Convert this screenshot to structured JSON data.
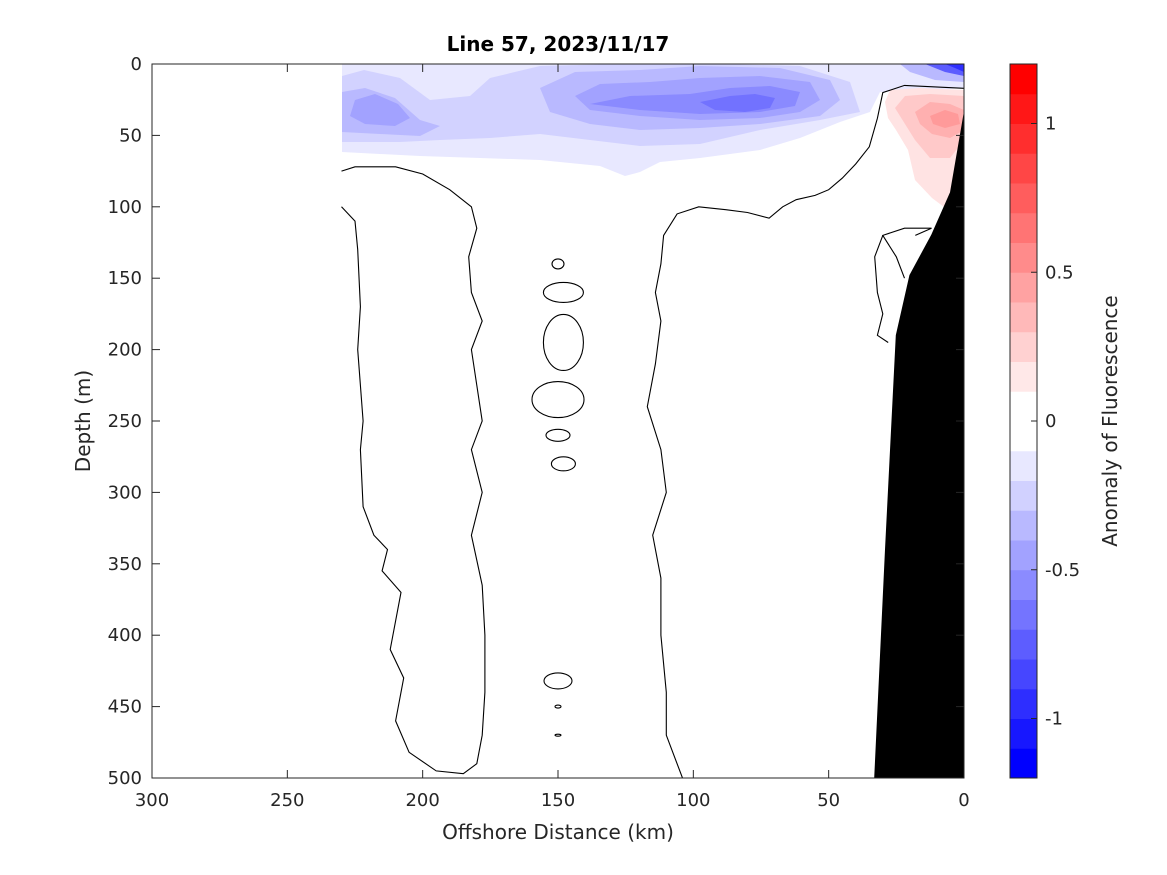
{
  "chart_data": {
    "type": "contour",
    "title": "Line 57, 2023/11/17",
    "xlabel": "Offshore Distance (km)",
    "ylabel": "Depth (m)",
    "xlim": [
      300,
      0
    ],
    "ylim": [
      500,
      0
    ],
    "x_reversed": true,
    "y_reversed": true,
    "xticks": [
      "300",
      "250",
      "200",
      "150",
      "100",
      "50",
      "0"
    ],
    "yticks": [
      "0",
      "50",
      "100",
      "150",
      "200",
      "250",
      "300",
      "350",
      "400",
      "450",
      "500"
    ],
    "colorbar": {
      "label": "Anomaly of Fluorescence",
      "range": [
        -1.2,
        1.2
      ],
      "step": 0.1,
      "ticks": [
        "1",
        "0.5",
        "0",
        "-0.5",
        "-1"
      ],
      "tick_values": [
        1,
        0.5,
        0,
        -0.5,
        -1
      ],
      "colormap": "blue-white-red",
      "low_color": "#0000ff",
      "mid_color": "#ffffff",
      "high_color": "#ff0000"
    },
    "filled_regions": [
      {
        "name": "surface negative anomaly",
        "sign": "negative",
        "x_range": [
          230,
          0
        ],
        "depth_range": [
          0,
          80
        ],
        "min_value": -0.6
      },
      {
        "name": "nearshore positive anomaly",
        "sign": "positive",
        "x_range": [
          32,
          0
        ],
        "depth_range": [
          15,
          100
        ],
        "max_value": 0.4
      },
      {
        "name": "coastal surface negative",
        "sign": "negative",
        "x_range": [
          20,
          0
        ],
        "depth_range": [
          0,
          8
        ],
        "min_value": -0.8
      }
    ],
    "zero_contours": [
      {
        "name": "offshore column",
        "points": [
          [
            230,
            75
          ],
          [
            225,
            72
          ],
          [
            210,
            72
          ],
          [
            200,
            77
          ],
          [
            190,
            88
          ],
          [
            182,
            100
          ],
          [
            180,
            115
          ],
          [
            183,
            135
          ],
          [
            182,
            160
          ],
          [
            178,
            180
          ],
          [
            182,
            200
          ],
          [
            180,
            225
          ],
          [
            178,
            250
          ],
          [
            182,
            270
          ],
          [
            178,
            300
          ],
          [
            182,
            330
          ],
          [
            178,
            365
          ],
          [
            177,
            400
          ],
          [
            177,
            440
          ],
          [
            178,
            470
          ],
          [
            180,
            490
          ],
          [
            185,
            497
          ],
          [
            195,
            495
          ],
          [
            205,
            482
          ],
          [
            210,
            460
          ],
          [
            207,
            430
          ],
          [
            212,
            410
          ],
          [
            208,
            370
          ],
          [
            215,
            355
          ],
          [
            213,
            340
          ],
          [
            218,
            330
          ],
          [
            222,
            310
          ],
          [
            223,
            270
          ],
          [
            222,
            250
          ],
          [
            224,
            200
          ],
          [
            223,
            170
          ],
          [
            224,
            130
          ],
          [
            225,
            110
          ],
          [
            230,
            100
          ]
        ]
      },
      {
        "name": "central boundary",
        "points": [
          [
            104,
            500
          ],
          [
            110,
            470
          ],
          [
            110,
            440
          ],
          [
            112,
            400
          ],
          [
            112,
            360
          ],
          [
            115,
            330
          ],
          [
            110,
            300
          ],
          [
            112,
            270
          ],
          [
            117,
            240
          ],
          [
            114,
            210
          ],
          [
            112,
            180
          ],
          [
            114,
            160
          ],
          [
            112,
            140
          ],
          [
            111,
            120
          ],
          [
            106,
            105
          ],
          [
            98,
            100
          ],
          [
            88,
            102
          ],
          [
            80,
            104
          ],
          [
            72,
            108
          ],
          [
            67,
            100
          ],
          [
            62,
            95
          ],
          [
            55,
            92
          ],
          [
            50,
            88
          ],
          [
            45,
            80
          ],
          [
            40,
            70
          ],
          [
            35,
            58
          ],
          [
            32,
            38
          ],
          [
            30,
            20
          ],
          [
            22,
            15
          ],
          [
            0,
            17
          ]
        ]
      },
      {
        "name": "nearshore slope contour",
        "points": [
          [
            22,
            150
          ],
          [
            25,
            135
          ],
          [
            30,
            120
          ],
          [
            22,
            115
          ],
          [
            12,
            115
          ],
          [
            18,
            120
          ]
        ]
      },
      {
        "name": "nearshore lower loop",
        "points": [
          [
            30,
            120
          ],
          [
            33,
            135
          ],
          [
            32,
            160
          ],
          [
            30,
            175
          ],
          [
            32,
            190
          ],
          [
            28,
            195
          ]
        ]
      }
    ],
    "small_contours": [
      {
        "depth": 140,
        "x": 150
      },
      {
        "depth": 160,
        "x": 148
      },
      {
        "depth": 195,
        "x": 148
      },
      {
        "depth": 235,
        "x": 150
      },
      {
        "depth": 260,
        "x": 150
      },
      {
        "depth": 280,
        "x": 148
      },
      {
        "depth": 432,
        "x": 150
      },
      {
        "depth": 450,
        "x": 150
      },
      {
        "depth": 470,
        "x": 150
      }
    ],
    "bathymetry_mask": {
      "color": "#000000",
      "points": [
        [
          33,
          500
        ],
        [
          29,
          340
        ],
        [
          25,
          190
        ],
        [
          20,
          148
        ],
        [
          12,
          120
        ],
        [
          5,
          90
        ],
        [
          0,
          35
        ],
        [
          0,
          500
        ]
      ]
    }
  }
}
